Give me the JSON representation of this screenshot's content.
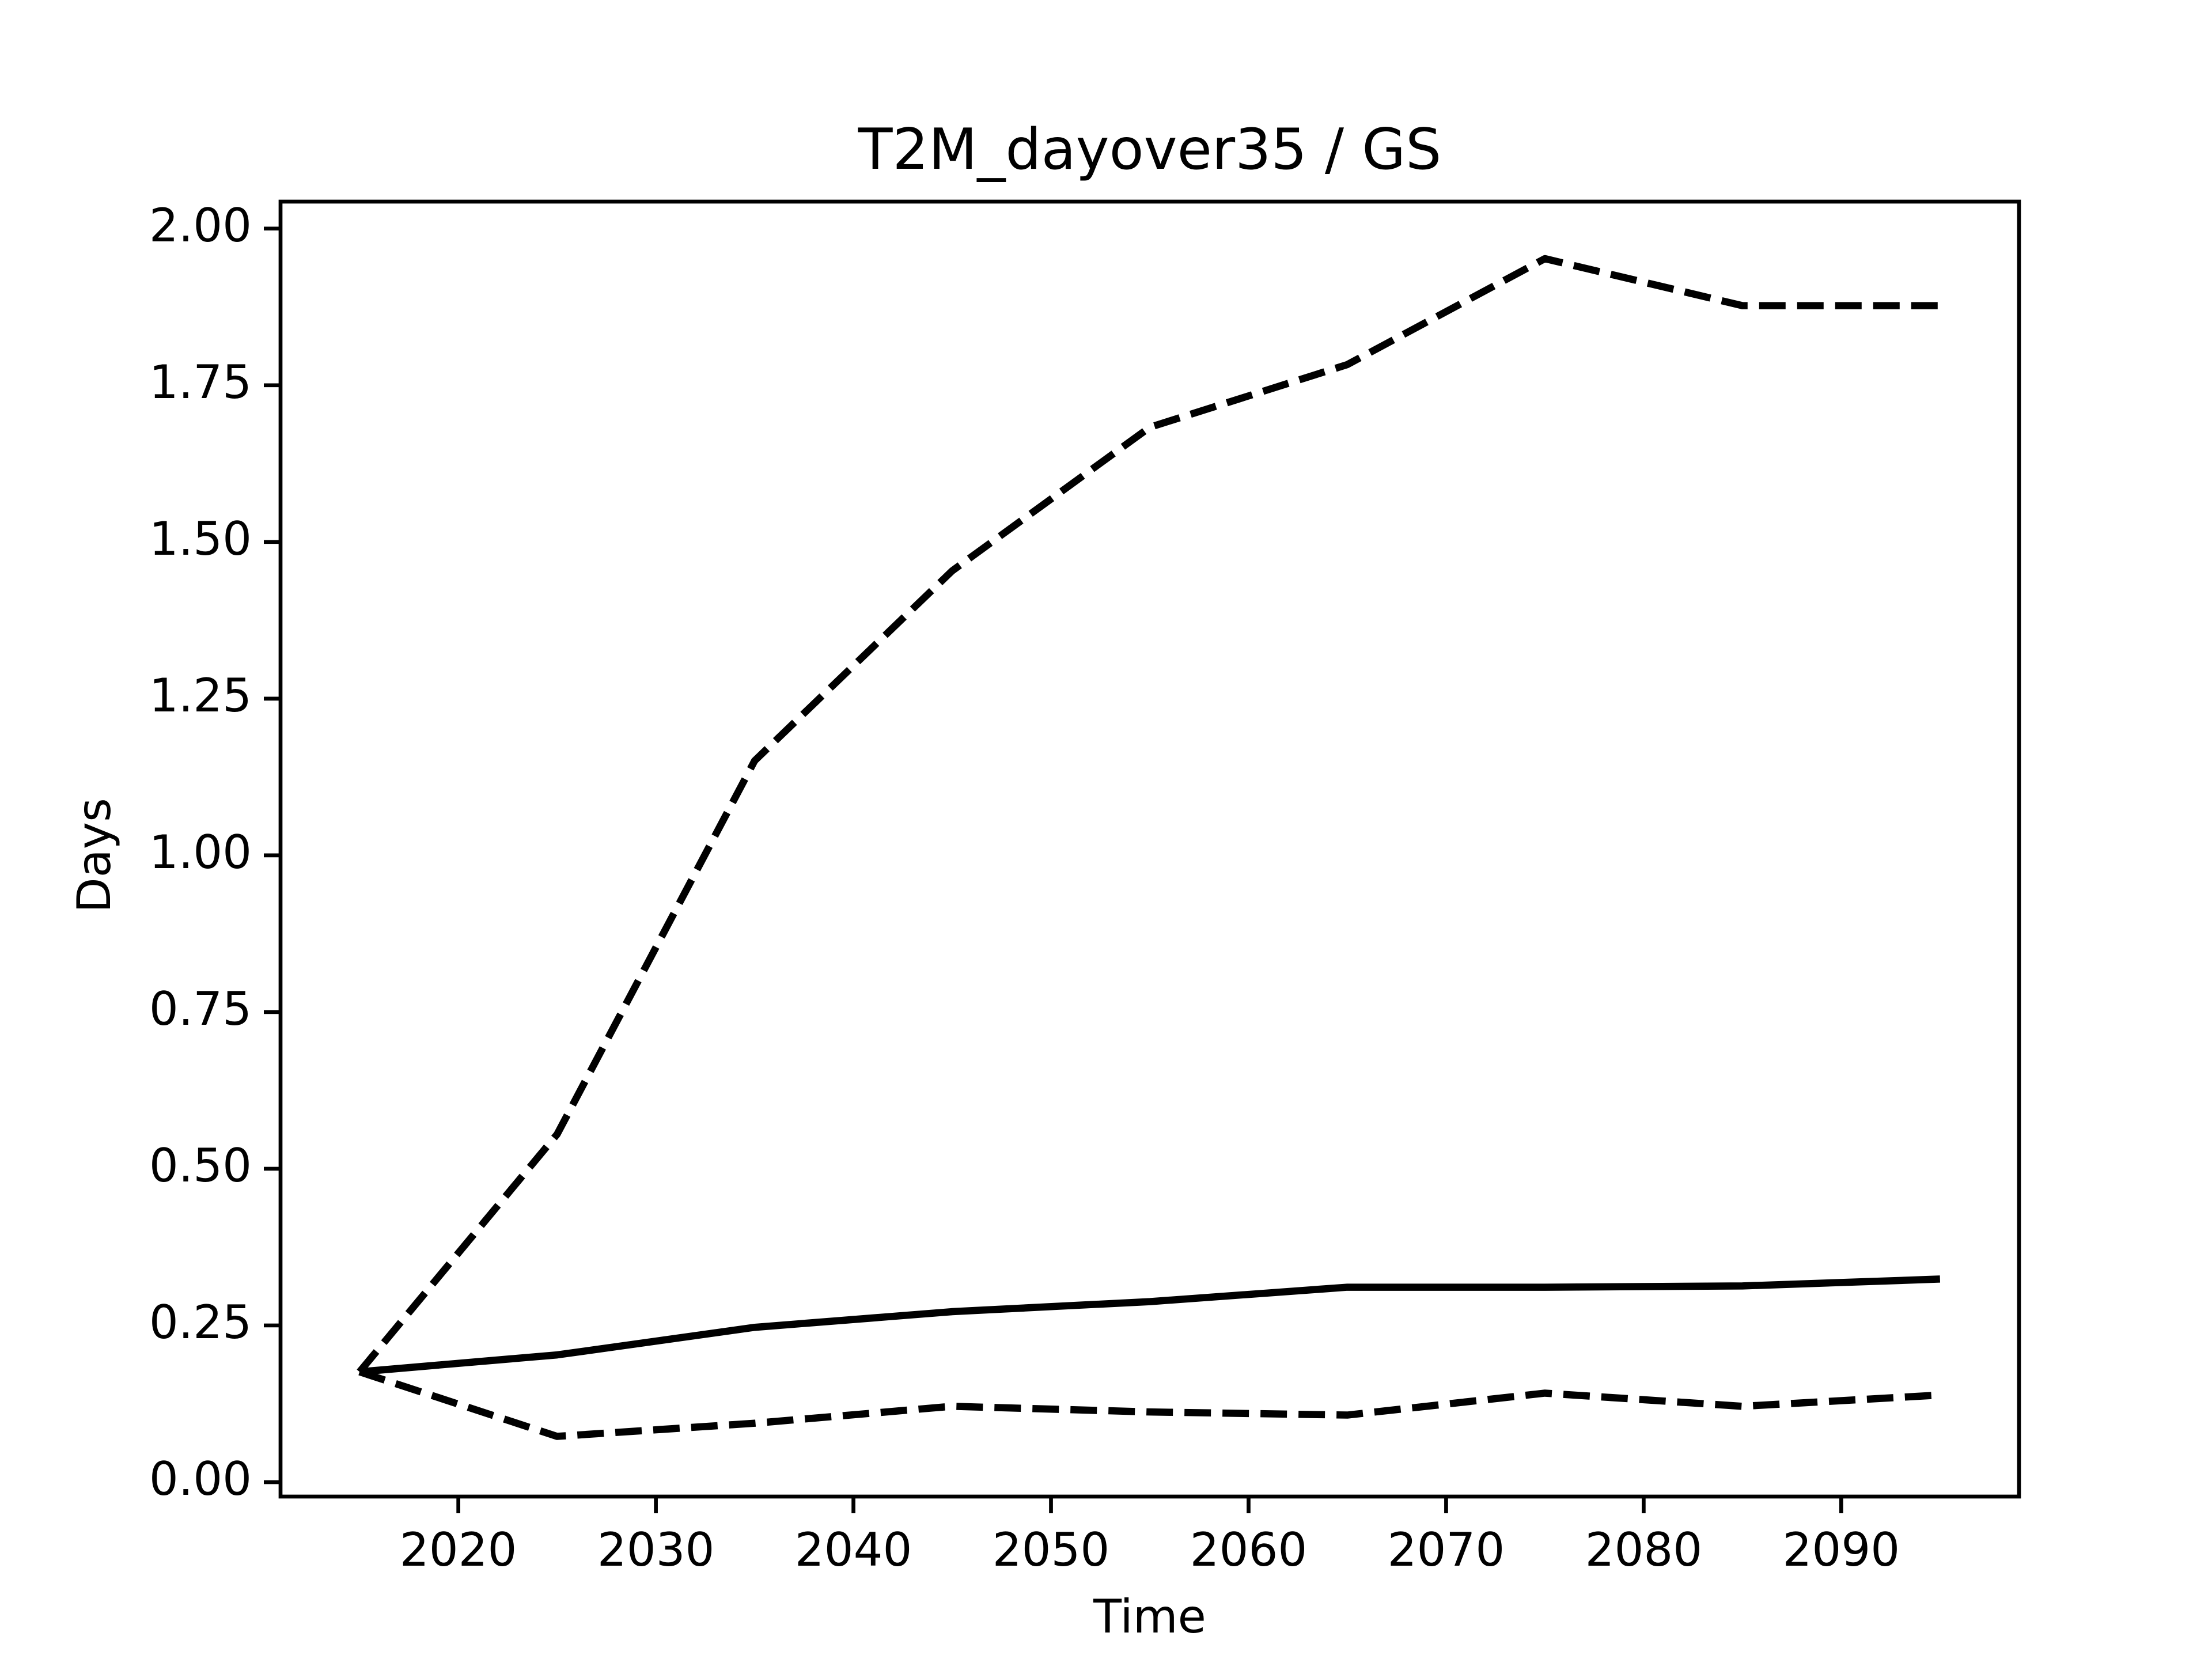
{
  "chart_data": {
    "type": "line",
    "title": "T2M_dayover35 / GS",
    "xlabel": "Time",
    "ylabel": "Days",
    "x": [
      2015,
      2025,
      2035,
      2045,
      2055,
      2065,
      2075,
      2085,
      2095
    ],
    "series": [
      {
        "color": "#000000",
        "dashed": true,
        "values": [
          0.176,
          0.555,
          1.151,
          1.454,
          1.683,
          1.783,
          1.952,
          1.877,
          1.877
        ]
      },
      {
        "color": "#000000",
        "dashed": false,
        "values": [
          0.176,
          0.203,
          0.247,
          0.272,
          0.288,
          0.311,
          0.311,
          0.313,
          0.324
        ]
      },
      {
        "color": "#000000",
        "dashed": true,
        "values": [
          0.176,
          0.073,
          0.094,
          0.121,
          0.112,
          0.107,
          0.142,
          0.121,
          0.139
        ]
      }
    ],
    "xlim": [
      2011,
      2099
    ],
    "xticks": [
      2020,
      2030,
      2040,
      2050,
      2060,
      2070,
      2080,
      2090
    ],
    "ylim": [
      -0.023,
      2.043
    ],
    "yticks": [
      {
        "value": 0,
        "label": "0.00"
      },
      {
        "value": 0.25,
        "label": "0.25"
      },
      {
        "value": 0.5,
        "label": "0.50"
      },
      {
        "value": 0.75,
        "label": "0.75"
      },
      {
        "value": 1,
        "label": "1.00"
      },
      {
        "value": 1.25,
        "label": "1.25"
      },
      {
        "value": 1.5,
        "label": "1.50"
      },
      {
        "value": 1.75,
        "label": "1.75"
      },
      {
        "value": 2,
        "label": "2.00"
      }
    ],
    "grid": false
  }
}
